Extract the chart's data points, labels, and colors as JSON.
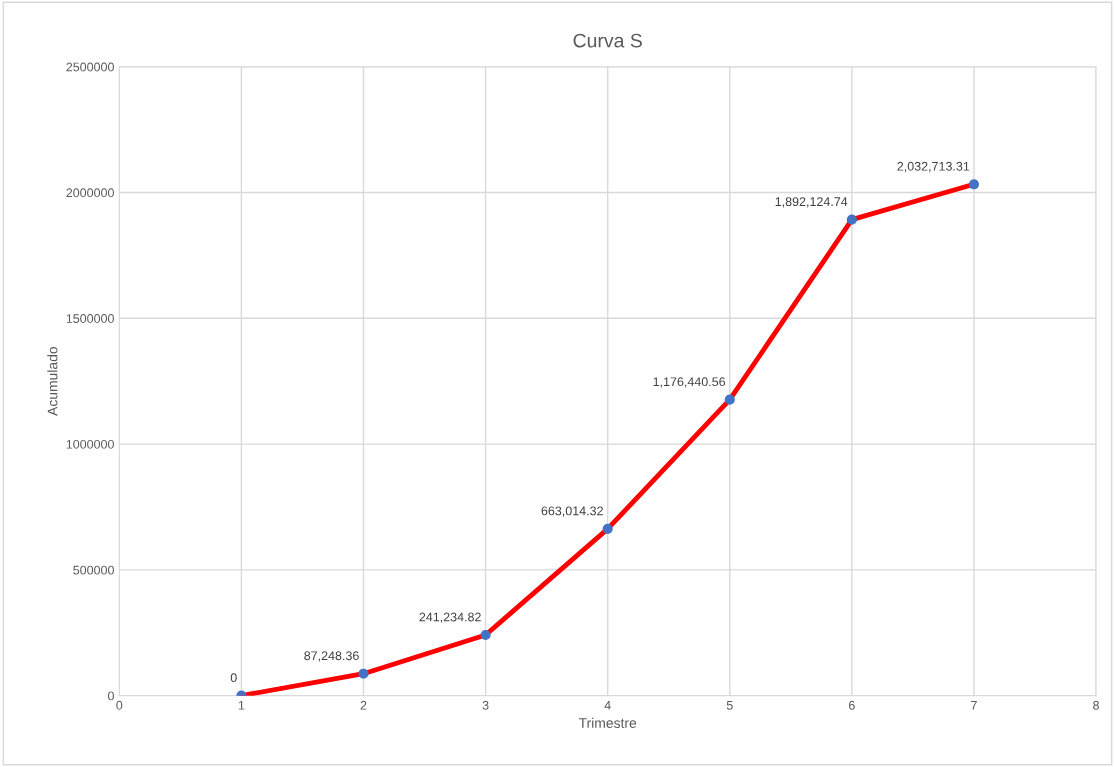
{
  "chart_data": {
    "type": "line",
    "title": "Curva S",
    "xlabel": "Trimestre",
    "ylabel": "Acumulado",
    "x": [
      1,
      2,
      3,
      4,
      5,
      6,
      7
    ],
    "series": [
      {
        "color": "#ff0000",
        "colors": [
          "#4472c4",
          "#4472c4",
          "#4472c4",
          "#4472c4",
          "#4472c4",
          "#4472c4",
          "#4472c4"
        ],
        "values": [
          0,
          87248.36,
          241234.82,
          663014.32,
          1176440.56,
          1892124.74,
          2032713.31
        ],
        "value_labels": [
          "0",
          "87,248.36",
          "241,234.82",
          "663,014.32",
          "1,176,440.56",
          "1,892,124.74",
          "2,032,713.31"
        ]
      }
    ],
    "xlim": [
      0,
      8
    ],
    "xticks": [
      0,
      1,
      2,
      3,
      4,
      5,
      6,
      7,
      8
    ],
    "ylim": [
      0,
      2500000
    ],
    "yticks": [
      0,
      500000,
      1000000,
      1500000,
      2000000,
      2500000
    ],
    "grid": true,
    "marker": "circle",
    "line_style": "solid",
    "legend": false
  }
}
